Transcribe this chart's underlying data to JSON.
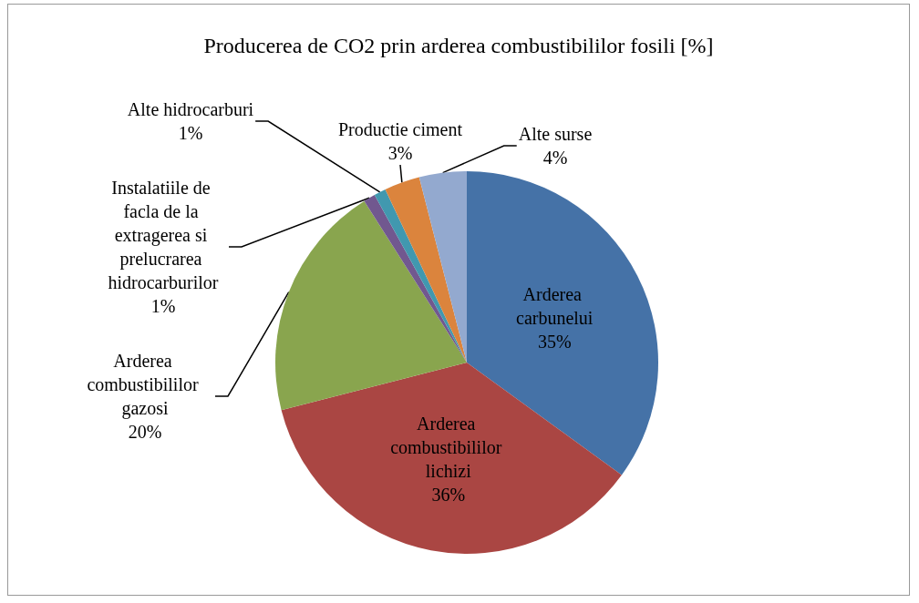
{
  "chart_data": {
    "type": "pie",
    "title": "Producerea de CO2 prin arderea combustibililor fosili [%]",
    "categories": [
      "Arderea carbunelui",
      "Arderea combustibililor lichizi",
      "Arderea combustibililor gazosi",
      "Instalatiile de facla de la extragerea si prelucrarea hidrocarburilor",
      "Alte hidrocarburi",
      "Productie ciment",
      "Alte surse"
    ],
    "values": [
      35,
      36,
      20,
      1,
      1,
      3,
      4
    ],
    "colors": [
      "#4572a7",
      "#aa4643",
      "#89a54e",
      "#71588f",
      "#4198af",
      "#db843d",
      "#93a9cf"
    ],
    "value_labels": [
      "35%",
      "36%",
      "20%",
      "1%",
      "1%",
      "3%",
      "4%"
    ],
    "legend": false
  }
}
